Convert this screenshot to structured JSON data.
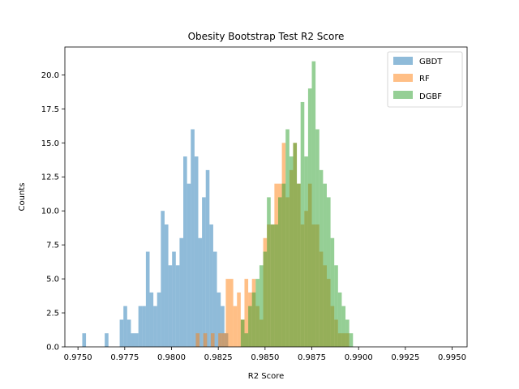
{
  "chart_data": {
    "type": "histogram",
    "title": "Obesity Bootstrap Test R2 Score",
    "xlabel": "R2 Score",
    "ylabel": "Counts",
    "xlim": [
      0.9743,
      0.9958
    ],
    "ylim": [
      0,
      22.05
    ],
    "x_ticks": [
      "0.9750",
      "0.9775",
      "0.9800",
      "0.9825",
      "0.9850",
      "0.9875",
      "0.9900",
      "0.9925",
      "0.9950"
    ],
    "y_ticks": [
      "0.0",
      "2.5",
      "5.0",
      "7.5",
      "10.0",
      "12.5",
      "15.0",
      "17.5",
      "20.0"
    ],
    "legend_position": "upper right",
    "series": [
      {
        "name": "GBDT",
        "color": "#1f77b4",
        "alpha": 0.5,
        "bins": [
          [
            0.97523,
            0.97543,
            1
          ],
          [
            0.97643,
            0.97663,
            1
          ],
          [
            0.97723,
            0.97743,
            2
          ],
          [
            0.97743,
            0.97763,
            3
          ],
          [
            0.97763,
            0.97783,
            2
          ],
          [
            0.97783,
            0.97803,
            1
          ],
          [
            0.97803,
            0.97823,
            1
          ],
          [
            0.97823,
            0.97843,
            3
          ],
          [
            0.97843,
            0.97863,
            3
          ],
          [
            0.97863,
            0.97883,
            7
          ],
          [
            0.97883,
            0.97903,
            4
          ],
          [
            0.97903,
            0.97923,
            3
          ],
          [
            0.97923,
            0.97943,
            4
          ],
          [
            0.97943,
            0.97963,
            10
          ],
          [
            0.97963,
            0.97983,
            9
          ],
          [
            0.97983,
            0.98003,
            6
          ],
          [
            0.98003,
            0.98023,
            7
          ],
          [
            0.98023,
            0.98043,
            6
          ],
          [
            0.98043,
            0.98063,
            8
          ],
          [
            0.98063,
            0.98083,
            14
          ],
          [
            0.98083,
            0.98103,
            12
          ],
          [
            0.98103,
            0.98123,
            16
          ],
          [
            0.98123,
            0.98143,
            14
          ],
          [
            0.98143,
            0.98163,
            8
          ],
          [
            0.98163,
            0.98183,
            11
          ],
          [
            0.98183,
            0.98203,
            13
          ],
          [
            0.98203,
            0.98223,
            9
          ],
          [
            0.98223,
            0.98243,
            7
          ],
          [
            0.98243,
            0.98263,
            4
          ],
          [
            0.98263,
            0.98283,
            3
          ],
          [
            0.98283,
            0.98303,
            1
          ]
        ]
      },
      {
        "name": "RF",
        "color": "#ff7f0e",
        "alpha": 0.5,
        "bins": [
          [
            0.9813,
            0.9815,
            1
          ],
          [
            0.9817,
            0.9819,
            1
          ],
          [
            0.9821,
            0.9823,
            1
          ],
          [
            0.9825,
            0.9827,
            1
          ],
          [
            0.9827,
            0.9829,
            1
          ],
          [
            0.9829,
            0.9831,
            5
          ],
          [
            0.9831,
            0.9833,
            5
          ],
          [
            0.9833,
            0.9835,
            3
          ],
          [
            0.9835,
            0.9837,
            4
          ],
          [
            0.9837,
            0.9839,
            2
          ],
          [
            0.9839,
            0.9841,
            5
          ],
          [
            0.9841,
            0.9843,
            4
          ],
          [
            0.9843,
            0.9845,
            5
          ],
          [
            0.9845,
            0.9847,
            3
          ],
          [
            0.9847,
            0.9849,
            2
          ],
          [
            0.9849,
            0.9851,
            8
          ],
          [
            0.9851,
            0.9853,
            9
          ],
          [
            0.9853,
            0.9855,
            9
          ],
          [
            0.9855,
            0.9857,
            12
          ],
          [
            0.9857,
            0.9859,
            12
          ],
          [
            0.9859,
            0.9861,
            15
          ],
          [
            0.9861,
            0.9863,
            11
          ],
          [
            0.9863,
            0.9865,
            13
          ],
          [
            0.9865,
            0.9867,
            15
          ],
          [
            0.9867,
            0.9869,
            12
          ],
          [
            0.9869,
            0.9871,
            9
          ],
          [
            0.9871,
            0.9873,
            10
          ],
          [
            0.9873,
            0.9875,
            12
          ],
          [
            0.9875,
            0.9877,
            9
          ],
          [
            0.9877,
            0.9879,
            9
          ],
          [
            0.9879,
            0.9881,
            7
          ],
          [
            0.9881,
            0.9883,
            6
          ],
          [
            0.9883,
            0.9885,
            5
          ],
          [
            0.9885,
            0.9887,
            3
          ],
          [
            0.9887,
            0.9889,
            2
          ],
          [
            0.9889,
            0.9891,
            1
          ],
          [
            0.9891,
            0.9893,
            1
          ],
          [
            0.9893,
            0.9895,
            1
          ]
        ]
      },
      {
        "name": "DGBF",
        "color": "#2ca02c",
        "alpha": 0.5,
        "bins": [
          [
            0.9837,
            0.9839,
            2
          ],
          [
            0.9839,
            0.9841,
            1
          ],
          [
            0.9841,
            0.9843,
            3
          ],
          [
            0.9843,
            0.9845,
            4
          ],
          [
            0.9845,
            0.9847,
            5
          ],
          [
            0.9847,
            0.9849,
            6
          ],
          [
            0.9849,
            0.9851,
            7
          ],
          [
            0.9851,
            0.9853,
            11
          ],
          [
            0.9853,
            0.9855,
            9
          ],
          [
            0.9855,
            0.9857,
            9
          ],
          [
            0.9857,
            0.9859,
            11
          ],
          [
            0.9859,
            0.9861,
            12
          ],
          [
            0.9861,
            0.9863,
            16
          ],
          [
            0.9863,
            0.9865,
            14
          ],
          [
            0.9865,
            0.9867,
            15
          ],
          [
            0.9867,
            0.9869,
            12
          ],
          [
            0.9869,
            0.9871,
            18
          ],
          [
            0.9871,
            0.9873,
            14
          ],
          [
            0.9873,
            0.9875,
            19
          ],
          [
            0.9875,
            0.9877,
            21
          ],
          [
            0.9877,
            0.9879,
            16
          ],
          [
            0.9879,
            0.9881,
            13
          ],
          [
            0.9881,
            0.9883,
            12
          ],
          [
            0.9883,
            0.9885,
            11
          ],
          [
            0.9885,
            0.9887,
            8
          ],
          [
            0.9887,
            0.9889,
            6
          ],
          [
            0.9889,
            0.9891,
            4
          ],
          [
            0.9891,
            0.9893,
            3
          ],
          [
            0.9893,
            0.9895,
            2
          ],
          [
            0.9895,
            0.9897,
            1
          ]
        ]
      }
    ]
  }
}
